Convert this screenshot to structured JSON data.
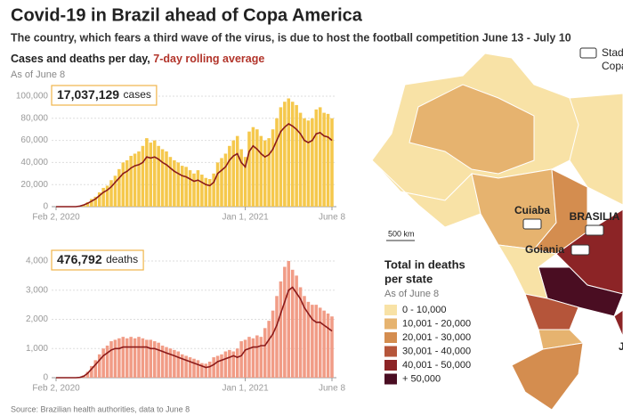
{
  "header": {
    "title": "Covid-19 in Brazil ahead of Copa America",
    "subtitle": "The country, which fears a third wave of the virus, is due to host the football competition June 13 - July 10",
    "chart_heading": "Cases and deaths per day, ",
    "chart_highlight": "7-day rolling average",
    "as_of": "As of June 8"
  },
  "chart_data": [
    {
      "type": "bar",
      "total": {
        "value": 17037129,
        "label": "17,037,129"
      },
      "total_unit": "cases",
      "categories": [
        "Feb 2, 2020",
        null,
        null,
        null,
        null,
        null,
        null,
        null,
        null,
        null,
        null,
        null,
        null,
        null,
        null,
        null,
        null,
        null,
        null,
        null,
        null,
        null,
        null,
        null,
        null,
        null,
        null,
        null,
        null,
        null,
        null,
        null,
        null,
        null,
        null,
        null,
        null,
        null,
        null,
        null,
        null,
        null,
        null,
        null,
        null,
        null,
        null,
        null,
        "Jan 1, 2021",
        null,
        null,
        null,
        null,
        null,
        null,
        null,
        null,
        null,
        null,
        null,
        null,
        null,
        null,
        null,
        null,
        null,
        null,
        null,
        null,
        null,
        "June 8"
      ],
      "ylim": [
        0,
        100000
      ],
      "yticks": [
        0,
        {
          "value": 20000,
          "label": "20,000"
        },
        {
          "value": 40000,
          "label": "40,000"
        },
        {
          "value": 60000,
          "label": "60,000"
        },
        {
          "value": 80000,
          "label": "80,000"
        },
        {
          "value": 100000,
          "label": "100,000"
        }
      ],
      "grid": true,
      "series": [
        {
          "type": "bar",
          "color": "#f5c84c",
          "values": [
            0,
            0,
            0,
            0,
            0,
            0,
            700,
            2000,
            4000,
            7000,
            9000,
            13000,
            17000,
            19000,
            24000,
            28000,
            34000,
            40000,
            42000,
            46000,
            48000,
            50000,
            55000,
            62000,
            58000,
            60000,
            55000,
            52000,
            50000,
            45000,
            42000,
            40000,
            37000,
            36000,
            33000,
            30000,
            33000,
            29000,
            26000,
            25000,
            30000,
            40000,
            44000,
            48000,
            55000,
            60000,
            64000,
            52000,
            45000,
            68000,
            72000,
            70000,
            64000,
            60000,
            62000,
            70000,
            80000,
            90000,
            95000,
            98000,
            95000,
            92000,
            85000,
            80000,
            78000,
            80000,
            88000,
            90000,
            85000,
            84000,
            80000
          ]
        },
        {
          "type": "line",
          "color": "#8b1a1a",
          "values": [
            0,
            0,
            0,
            0,
            0,
            0,
            500,
            1500,
            3000,
            5000,
            7000,
            10000,
            13000,
            15000,
            18000,
            22000,
            26000,
            30000,
            32000,
            35000,
            37000,
            38000,
            40000,
            45000,
            44000,
            45000,
            43000,
            40000,
            38000,
            35000,
            32000,
            30000,
            28000,
            27000,
            25000,
            23000,
            24000,
            22000,
            20000,
            19000,
            22000,
            30000,
            33000,
            36000,
            42000,
            46000,
            48000,
            40000,
            36000,
            50000,
            55000,
            52000,
            48000,
            45000,
            47000,
            52000,
            60000,
            68000,
            72000,
            75000,
            73000,
            70000,
            66000,
            60000,
            58000,
            60000,
            66000,
            67000,
            64000,
            63000,
            60000
          ]
        }
      ]
    },
    {
      "type": "bar",
      "total": {
        "value": 476792,
        "label": "476,792"
      },
      "total_unit": "deaths",
      "categories": [
        "Feb 2, 2020",
        null,
        null,
        null,
        null,
        null,
        null,
        null,
        null,
        null,
        null,
        null,
        null,
        null,
        null,
        null,
        null,
        null,
        null,
        null,
        null,
        null,
        null,
        null,
        null,
        null,
        null,
        null,
        null,
        null,
        null,
        null,
        null,
        null,
        null,
        null,
        null,
        null,
        null,
        null,
        null,
        null,
        null,
        null,
        null,
        null,
        null,
        null,
        "Jan 1, 2021",
        null,
        null,
        null,
        null,
        null,
        null,
        null,
        null,
        null,
        null,
        null,
        null,
        null,
        null,
        null,
        null,
        null,
        null,
        null,
        null,
        null,
        "June 8"
      ],
      "ylim": [
        0,
        4000
      ],
      "yticks": [
        0,
        {
          "value": 1000,
          "label": "1,000"
        },
        {
          "value": 2000,
          "label": "2,000"
        },
        {
          "value": 3000,
          "label": "3,000"
        },
        {
          "value": 4000,
          "label": "4,000"
        }
      ],
      "grid": true,
      "series": [
        {
          "type": "bar",
          "color": "#f19c86",
          "values": [
            0,
            0,
            0,
            0,
            0,
            0,
            20,
            80,
            200,
            400,
            600,
            800,
            1000,
            1100,
            1250,
            1300,
            1350,
            1400,
            1350,
            1400,
            1350,
            1400,
            1350,
            1300,
            1300,
            1250,
            1200,
            1100,
            1050,
            1000,
            950,
            900,
            800,
            750,
            700,
            650,
            600,
            500,
            480,
            550,
            700,
            750,
            800,
            900,
            950,
            900,
            1000,
            1250,
            1300,
            1400,
            1350,
            1450,
            1400,
            1700,
            1950,
            2300,
            2800,
            3300,
            3800,
            4000,
            3700,
            3500,
            3100,
            2800,
            2600,
            2500,
            2500,
            2400,
            2300,
            2200,
            2100
          ]
        },
        {
          "type": "line",
          "color": "#8b1a1a",
          "values": [
            0,
            0,
            0,
            0,
            0,
            0,
            10,
            50,
            150,
            300,
            450,
            600,
            750,
            850,
            950,
            1000,
            1000,
            1050,
            1050,
            1050,
            1050,
            1050,
            1050,
            1050,
            1000,
            1000,
            950,
            900,
            850,
            800,
            750,
            700,
            650,
            600,
            550,
            500,
            450,
            400,
            350,
            380,
            450,
            550,
            600,
            650,
            700,
            750,
            700,
            750,
            950,
            1000,
            1050,
            1050,
            1100,
            1100,
            1300,
            1500,
            1800,
            2200,
            2600,
            3000,
            3100,
            2900,
            2700,
            2400,
            2200,
            2000,
            1900,
            1900,
            1800,
            1700,
            1600
          ]
        }
      ]
    }
  ],
  "map": {
    "stadium_legend": [
      "Stad",
      "Copa"
    ],
    "cities": [
      "Cuiaba",
      "BRASILIA",
      "Goiania",
      "J"
    ],
    "scale": "500 km",
    "legend_title": [
      "Total in deaths",
      "per state"
    ],
    "legend_note": "As of June 8",
    "legend": [
      {
        "label": "0 - 10,000",
        "color": "#f8e2a6"
      },
      {
        "label": "10,001 - 20,000",
        "color": "#e6b36f"
      },
      {
        "label": "20,001 - 30,000",
        "color": "#d48d4f"
      },
      {
        "label": "30,001 - 40,000",
        "color": "#b5553a"
      },
      {
        "label": "40,001 - 50,000",
        "color": "#8c2426"
      },
      {
        "label": "+ 50,000",
        "color": "#4a0d22"
      }
    ]
  },
  "footer": {
    "source": "Source: Brazilian health authorities, data to June 8"
  }
}
